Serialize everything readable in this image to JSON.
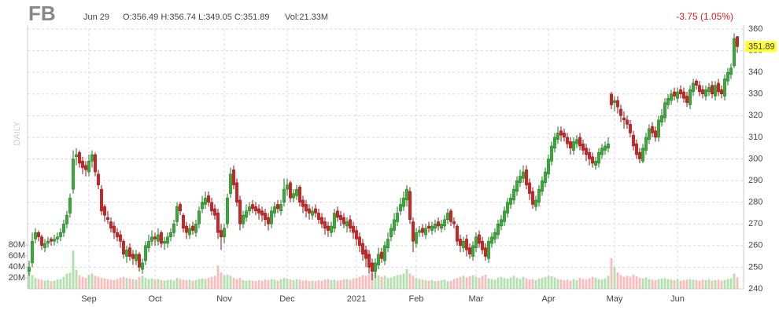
{
  "chart_data": {
    "type": "candlestick",
    "ticker": "FB",
    "date": "Jun 29",
    "ohlc_text": "O:356.49 H:356.74 L:349.05 C:351.89",
    "volume_text": "Vol:21.33M",
    "change": "-3.75 (1.05%)",
    "timeframe": "DAILY",
    "up_color": "#2fb12f",
    "down_color": "#d81e1e",
    "up_volume_color": "#b3dfae",
    "down_volume_color": "#f6bcbc",
    "price_label_color": "#ffff33",
    "grid": true,
    "ylim": [
      240,
      360
    ],
    "yticks": [
      240,
      250,
      260,
      270,
      280,
      290,
      300,
      310,
      320,
      330,
      340,
      350,
      360
    ],
    "y2lim": [
      0,
      475
    ],
    "y2ticks": [
      {
        "value": 20,
        "label": "20M"
      },
      {
        "value": 40,
        "label": "40M"
      },
      {
        "value": 60,
        "label": "60M"
      },
      {
        "value": 80,
        "label": "80M"
      }
    ],
    "xticks": [
      {
        "value": 19,
        "label": "Sep"
      },
      {
        "value": 40,
        "label": "Oct"
      },
      {
        "value": 62,
        "label": "Nov"
      },
      {
        "value": 82,
        "label": "Dec"
      },
      {
        "value": 104,
        "label": "2021"
      },
      {
        "value": 123,
        "label": "Feb"
      },
      {
        "value": 142,
        "label": "Mar"
      },
      {
        "value": 165,
        "label": "Apr"
      },
      {
        "value": 186,
        "label": "May"
      },
      {
        "value": 206,
        "label": "Jun"
      }
    ],
    "open": [
      248,
      252,
      263,
      266,
      264,
      259,
      261,
      263,
      262,
      263,
      264,
      266,
      270,
      275,
      286,
      301,
      303,
      299,
      297,
      294,
      299,
      302,
      293,
      286,
      278,
      273,
      271,
      269,
      266,
      265,
      262,
      255,
      259,
      256,
      253,
      256,
      249,
      253,
      259,
      262,
      264,
      262,
      266,
      261,
      261,
      264,
      266,
      271,
      279,
      274,
      269,
      265,
      269,
      266,
      270,
      277,
      279,
      283,
      280,
      277,
      275,
      267,
      264,
      270,
      284,
      295,
      289,
      281,
      270,
      273,
      276,
      279,
      278,
      277,
      276,
      275,
      273,
      270,
      275,
      279,
      276,
      280,
      286,
      289,
      282,
      283,
      287,
      281,
      279,
      277,
      274,
      277,
      275,
      273,
      271,
      269,
      266,
      268,
      276,
      274,
      273,
      269,
      272,
      269,
      267,
      264,
      261,
      258,
      256,
      252,
      248,
      251,
      257,
      253,
      259,
      264,
      267,
      271,
      276,
      278,
      281,
      285,
      271,
      261,
      266,
      268,
      265,
      269,
      267,
      268,
      271,
      268,
      269,
      272,
      276,
      271,
      269,
      263,
      259,
      263,
      259,
      255,
      259,
      265,
      262,
      259,
      254,
      261,
      263,
      265,
      269,
      271,
      275,
      279,
      281,
      285,
      289,
      291,
      295,
      289,
      285,
      278,
      280,
      285,
      289,
      293,
      299,
      305,
      309,
      313,
      312,
      310,
      308,
      304,
      307,
      310,
      307,
      305,
      303,
      301,
      297,
      298,
      302,
      304,
      305,
      330,
      326,
      327,
      323,
      319,
      318,
      316,
      311,
      307,
      303,
      299,
      304,
      309,
      315,
      313,
      310,
      317,
      319,
      325,
      327,
      331,
      328,
      332,
      331,
      329,
      325,
      331,
      336,
      334,
      332,
      329,
      331,
      334,
      329,
      335,
      332,
      329,
      336,
      339,
      343,
      356.49
    ],
    "high": [
      253,
      266,
      268,
      267,
      265,
      263,
      264,
      264,
      265,
      266,
      268,
      272,
      276,
      284,
      304,
      305,
      304,
      301,
      299,
      302,
      304,
      303,
      295,
      288,
      279,
      276,
      273,
      271,
      268,
      267,
      263,
      260,
      261,
      258,
      258,
      257,
      254,
      262,
      265,
      267,
      266,
      268,
      267,
      264,
      266,
      268,
      272,
      280,
      280,
      275,
      271,
      270,
      271,
      272,
      278,
      283,
      285,
      285,
      282,
      279,
      277,
      270,
      270,
      284,
      296,
      297,
      291,
      283,
      276,
      279,
      280,
      281,
      280,
      279,
      278,
      277,
      275,
      278,
      280,
      281,
      281,
      291,
      291,
      290,
      286,
      288,
      288,
      283,
      281,
      279,
      278,
      279,
      277,
      275,
      273,
      271,
      271,
      277,
      278,
      276,
      275,
      273,
      274,
      271,
      269,
      266,
      263,
      260,
      258,
      254,
      254,
      259,
      259,
      262,
      266,
      270,
      275,
      278,
      282,
      285,
      288,
      287,
      273,
      268,
      269,
      270,
      270,
      271,
      271,
      272,
      273,
      272,
      274,
      277,
      277,
      273,
      270,
      265,
      264,
      265,
      261,
      262,
      266,
      267,
      264,
      261,
      264,
      266,
      268,
      272,
      274,
      278,
      282,
      284,
      288,
      292,
      295,
      297,
      297,
      291,
      287,
      283,
      288,
      292,
      296,
      302,
      308,
      312,
      315,
      315,
      314,
      312,
      310,
      310,
      311,
      312,
      309,
      307,
      305,
      303,
      301,
      305,
      307,
      308,
      310,
      331,
      329,
      329,
      325,
      322,
      320,
      318,
      313,
      309,
      305,
      307,
      312,
      316,
      317,
      315,
      320,
      323,
      328,
      330,
      332,
      333,
      333,
      334,
      333,
      331,
      334,
      337,
      337,
      336,
      334,
      334,
      335,
      336,
      336,
      337,
      334,
      339,
      342,
      344,
      358,
      356.74
    ],
    "low": [
      246,
      250,
      261,
      262,
      258,
      257,
      259,
      260,
      260,
      261,
      262,
      264,
      268,
      273,
      284,
      297,
      296,
      293,
      292,
      292,
      296,
      292,
      286,
      274,
      271,
      270,
      266,
      263,
      262,
      259,
      254,
      252,
      253,
      251,
      251,
      248,
      247,
      251,
      257,
      260,
      260,
      260,
      259,
      258,
      259,
      262,
      264,
      269,
      274,
      266,
      263,
      263,
      265,
      264,
      268,
      275,
      277,
      278,
      274,
      272,
      263,
      258,
      261,
      268,
      282,
      286,
      278,
      267,
      268,
      271,
      274,
      275,
      274,
      272,
      271,
      269,
      267,
      268,
      273,
      275,
      274,
      278,
      283,
      280,
      280,
      281,
      278,
      275,
      273,
      272,
      272,
      273,
      270,
      268,
      265,
      264,
      264,
      266,
      271,
      269,
      268,
      266,
      266,
      263,
      260,
      257,
      253,
      250,
      247,
      244,
      245,
      249,
      252,
      251,
      257,
      262,
      265,
      269,
      274,
      276,
      278,
      270,
      257,
      259,
      264,
      264,
      263,
      266,
      265,
      266,
      267,
      266,
      267,
      270,
      269,
      268,
      260,
      257,
      257,
      255,
      254,
      253,
      257,
      259,
      256,
      253,
      252,
      259,
      261,
      263,
      267,
      269,
      273,
      277,
      279,
      283,
      287,
      289,
      286,
      281,
      277,
      276,
      278,
      283,
      287,
      291,
      297,
      303,
      307,
      308,
      308,
      305,
      302,
      302,
      305,
      304,
      302,
      299,
      297,
      296,
      295,
      296,
      300,
      302,
      303,
      323,
      322,
      321,
      317,
      314,
      314,
      310,
      304,
      300,
      298,
      298,
      302,
      307,
      310,
      308,
      308,
      315,
      317,
      323,
      325,
      327,
      326,
      328,
      326,
      324,
      323,
      329,
      332,
      329,
      328,
      327,
      329,
      328,
      327,
      329,
      328,
      327,
      334,
      337,
      342,
      349.05
    ],
    "close": [
      250,
      262,
      266,
      264,
      260,
      261,
      262,
      262,
      263,
      264,
      266,
      270,
      274,
      282,
      300,
      302,
      298,
      296,
      295,
      299,
      302,
      294,
      288,
      276,
      274,
      272,
      268,
      266,
      264,
      262,
      256,
      258,
      255,
      254,
      256,
      250,
      252,
      260,
      262,
      264,
      263,
      265,
      261,
      262,
      264,
      266,
      270,
      278,
      276,
      268,
      266,
      268,
      267,
      270,
      276,
      280,
      282,
      280,
      276,
      274,
      266,
      264,
      268,
      282,
      293,
      288,
      280,
      270,
      274,
      276,
      278,
      277,
      276,
      275,
      274,
      272,
      270,
      276,
      278,
      277,
      279,
      286,
      288,
      282,
      284,
      286,
      280,
      278,
      276,
      275,
      276,
      275,
      272,
      270,
      268,
      267,
      269,
      275,
      273,
      272,
      270,
      271,
      268,
      266,
      263,
      260,
      256,
      254,
      250,
      248,
      252,
      256,
      254,
      260,
      263,
      268,
      272,
      275,
      279,
      282,
      286,
      272,
      262,
      266,
      267,
      266,
      268,
      268,
      269,
      270,
      269,
      270,
      272,
      275,
      271,
      270,
      262,
      260,
      262,
      258,
      256,
      260,
      264,
      261,
      258,
      255,
      262,
      264,
      266,
      270,
      272,
      276,
      280,
      282,
      286,
      290,
      292,
      294,
      288,
      284,
      279,
      281,
      286,
      290,
      294,
      300,
      306,
      310,
      312,
      311,
      310,
      307,
      305,
      308,
      309,
      306,
      304,
      302,
      300,
      298,
      299,
      303,
      305,
      306,
      307,
      325,
      327,
      324,
      320,
      318,
      316,
      312,
      306,
      302,
      300,
      305,
      310,
      314,
      312,
      310,
      318,
      320,
      326,
      328,
      330,
      329,
      331,
      330,
      328,
      326,
      332,
      335,
      334,
      331,
      330,
      332,
      333,
      330,
      334,
      331,
      330,
      337,
      340,
      342,
      355.64,
      351.89
    ],
    "volume": [
      30,
      25,
      20,
      18,
      17,
      15,
      16,
      14,
      15,
      17,
      18,
      22,
      28,
      30,
      70,
      35,
      25,
      22,
      20,
      25,
      28,
      24,
      22,
      20,
      19,
      18,
      17,
      16,
      18,
      20,
      22,
      20,
      19,
      18,
      17,
      22,
      24,
      20,
      18,
      19,
      17,
      18,
      16,
      15,
      16,
      17,
      15,
      20,
      18,
      17,
      16,
      17,
      15,
      16,
      18,
      19,
      18,
      20,
      22,
      24,
      43,
      30,
      25,
      26,
      24,
      20,
      18,
      20,
      16,
      15,
      16,
      15,
      14,
      16,
      15,
      17,
      16,
      18,
      17,
      15,
      18,
      20,
      19,
      17,
      16,
      18,
      17,
      15,
      16,
      14,
      15,
      14,
      16,
      15,
      17,
      18,
      16,
      17,
      15,
      16,
      17,
      18,
      16,
      19,
      20,
      22,
      25,
      24,
      26,
      28,
      30,
      25,
      22,
      24,
      20,
      21,
      23,
      25,
      26,
      28,
      36,
      28,
      24,
      20,
      18,
      17,
      16,
      15,
      16,
      14,
      15,
      16,
      17,
      14,
      15,
      18,
      20,
      22,
      24,
      21,
      23,
      25,
      22,
      20,
      24,
      26,
      19,
      18,
      17,
      20,
      22,
      20,
      19,
      21,
      24,
      20,
      18,
      22,
      19,
      17,
      18,
      16,
      19,
      20,
      22,
      24,
      23,
      21,
      18,
      17,
      16,
      17,
      15,
      18,
      16,
      20,
      18,
      17,
      19,
      22,
      20,
      18,
      17,
      19,
      24,
      56,
      40,
      30,
      25,
      22,
      24,
      22,
      26,
      23,
      20,
      19,
      21,
      18,
      17,
      16,
      18,
      19,
      20,
      18,
      17,
      16,
      18,
      15,
      16,
      17,
      18,
      17,
      16,
      15,
      17,
      16,
      18,
      15,
      16,
      17,
      15,
      16,
      18,
      19,
      28,
      21.33
    ]
  }
}
